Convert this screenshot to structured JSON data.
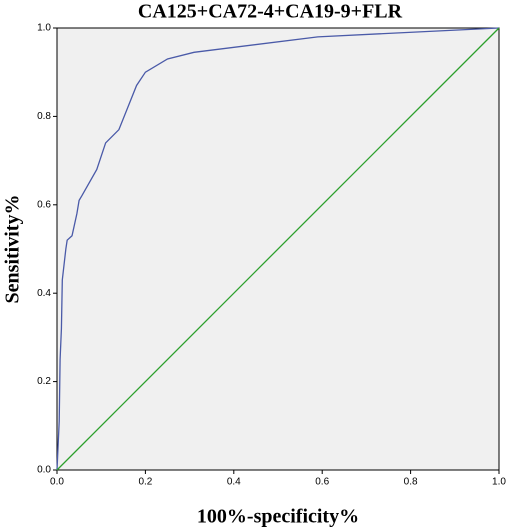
{
  "chart_data": {
    "type": "line",
    "title": "CA125+CA72-4+CA19-9+FLR",
    "x_label": "100%-specificity%",
    "y_label": "Sensitivity%",
    "series": [
      {
        "color": "#4a5aa8",
        "x": [
          0,
          0.005,
          0.007,
          0.01,
          0.012,
          0.02,
          0.023,
          0.034,
          0.045,
          0.05,
          0.056,
          0.09,
          0.11,
          0.14,
          0.18,
          0.2,
          0.25,
          0.31,
          0.59,
          1
        ],
        "values": [
          0,
          0.11,
          0.25,
          0.32,
          0.43,
          0.5,
          0.52,
          0.53,
          0.58,
          0.61,
          0.62,
          0.68,
          0.74,
          0.77,
          0.87,
          0.9,
          0.93,
          0.945,
          0.98,
          1
        ]
      },
      {
        "color": "#2ca02c",
        "x": [
          0,
          1
        ],
        "values": [
          0,
          1
        ]
      }
    ],
    "xlim": [
      0,
      1
    ],
    "ylim": [
      0,
      1
    ],
    "xticks": [
      {
        "value": 0,
        "label": "0.0"
      },
      0.2,
      0.4,
      0.6,
      0.8,
      {
        "value": 1,
        "label": "1.0"
      }
    ],
    "yticks": [
      {
        "value": 0,
        "label": "0.0"
      },
      0.2,
      0.4,
      0.6,
      0.8,
      {
        "value": 1,
        "label": "1.0"
      }
    ],
    "background": "#f0f0f0"
  }
}
